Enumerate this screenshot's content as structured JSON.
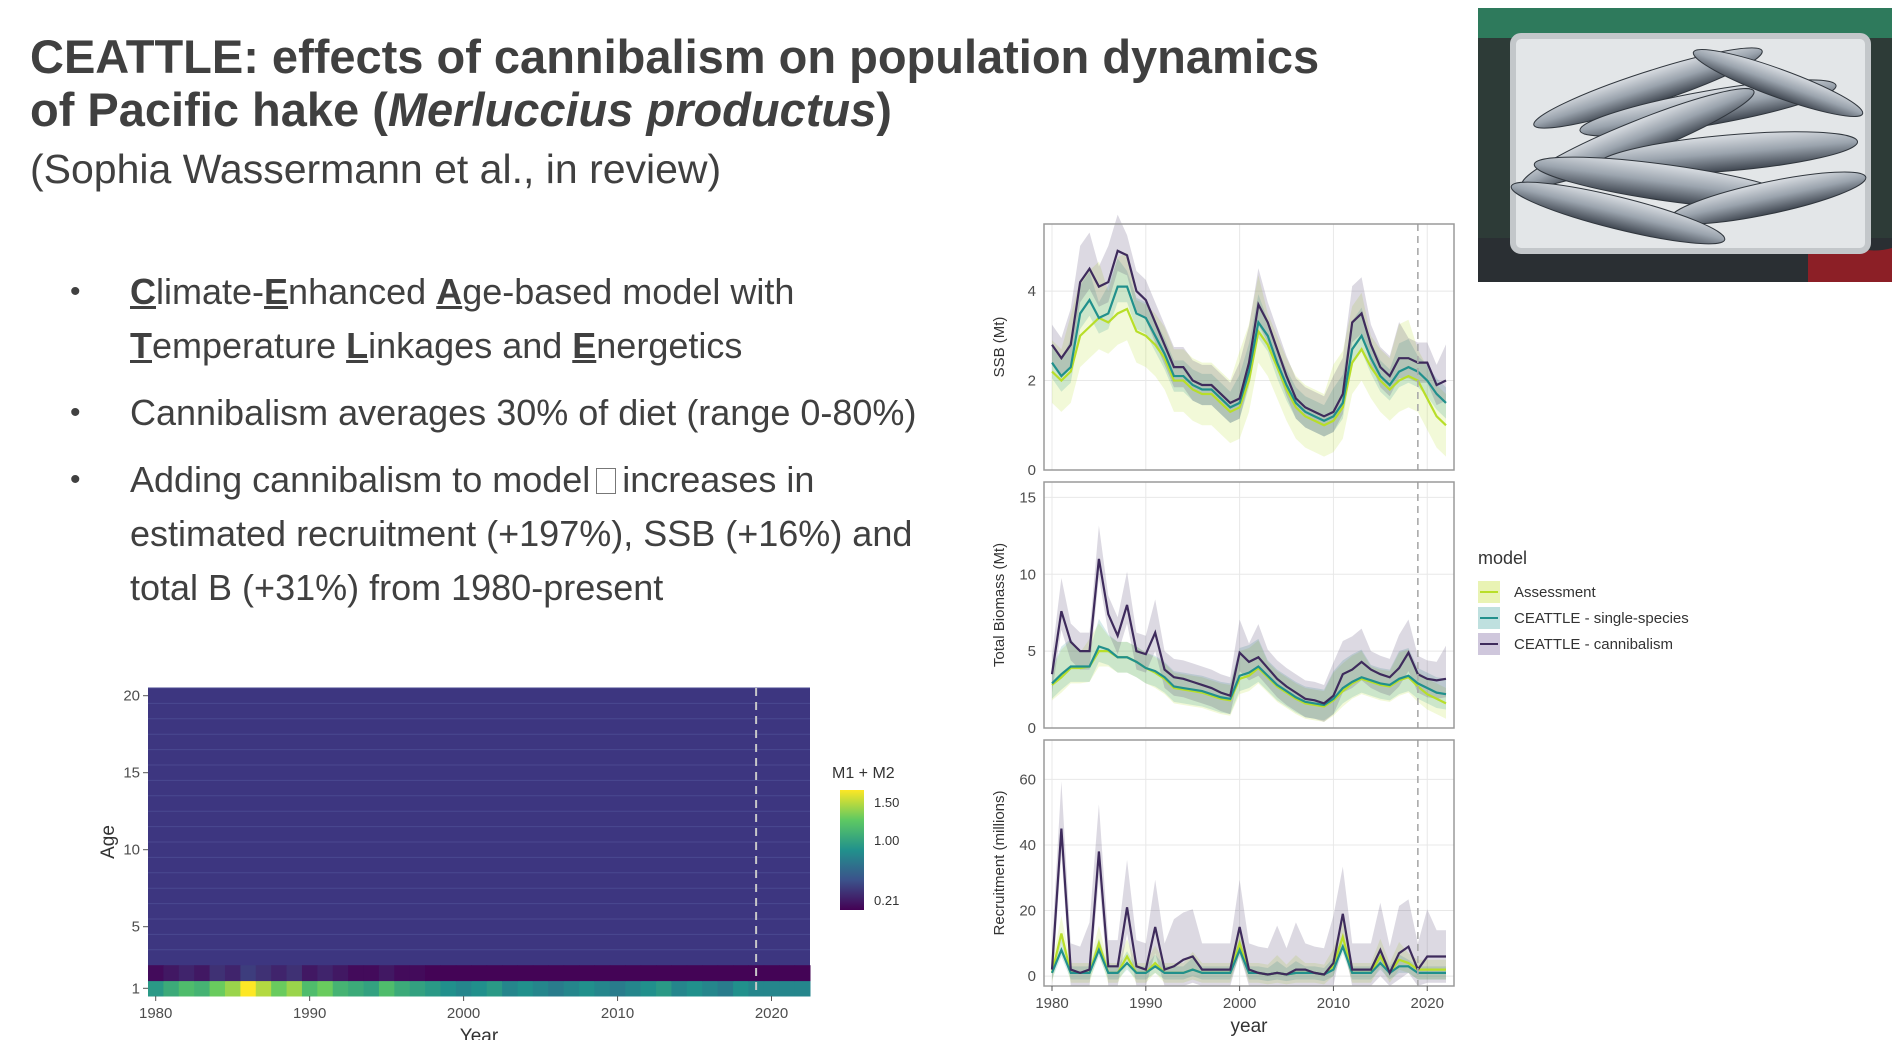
{
  "slide": {
    "title_line1": "CEATTLE: effects of cannibalism on population dynamics",
    "title_line2_pre": "of Pacific hake (",
    "title_line2_italic": "Merluccius productus",
    "title_line2_post": ")",
    "subtitle": "(Sophia Wassermann et al., in review)"
  },
  "bullets": {
    "b1": {
      "l1_u1": "C",
      "l1_t1": "limate-",
      "l1_u2": "E",
      "l1_t2": "nhanced ",
      "l1_u3": "A",
      "l1_t3": "ge-based model with",
      "l2_u1": "T",
      "l2_t1": "emperature ",
      "l2_u2": "L",
      "l2_t2": "inkages and ",
      "l2_u3": "E",
      "l2_t3": "nergetics"
    },
    "b2": "Cannibalism averages 30% of diet (range 0-80%)",
    "b3_pre": "Adding cannibalism to model",
    "b3_post": "increases in",
    "b3_l2": "estimated recruitment (+197%), SSB (+16%) and",
    "b3_l3": "total B (+31%) from 1980-present",
    "bullet_char": "•"
  },
  "photo": {
    "icon": "fish-in-crate-photo"
  },
  "chart_data": [
    {
      "type": "heatmap",
      "xlabel": "Year",
      "ylabel": "Age",
      "x_ticks": [
        "1980",
        "1990",
        "2000",
        "2010",
        "2020"
      ],
      "y_ticks": [
        "1",
        "5",
        "10",
        "15",
        "20"
      ],
      "xlim": [
        1980,
        2022
      ],
      "ylim": [
        1,
        20
      ],
      "vline_x": 2019,
      "legend_title": "M1 + M2",
      "legend_ticks": [
        "1.50",
        "1.00",
        "0.21"
      ],
      "age1_values": [
        0.9,
        1.0,
        1.1,
        1.05,
        1.2,
        1.3,
        1.5,
        1.35,
        1.2,
        1.3,
        1.1,
        1.2,
        1.05,
        1.0,
        0.95,
        1.1,
        1.0,
        0.95,
        0.9,
        0.85,
        0.8,
        0.85,
        0.9,
        0.8,
        0.85,
        0.8,
        0.75,
        0.8,
        0.85,
        0.8,
        0.75,
        0.8,
        0.85,
        0.9,
        0.8,
        0.85,
        0.8,
        0.75,
        0.85,
        0.8,
        0.8,
        0.8,
        0.8
      ],
      "age2_values": [
        0.25,
        0.3,
        0.35,
        0.3,
        0.4,
        0.35,
        0.45,
        0.4,
        0.35,
        0.4,
        0.3,
        0.35,
        0.3,
        0.25,
        0.25,
        0.3,
        0.25,
        0.25,
        0.22,
        0.22,
        0.22,
        0.22,
        0.22,
        0.22,
        0.22,
        0.22,
        0.22,
        0.22,
        0.22,
        0.22,
        0.22,
        0.22,
        0.22,
        0.22,
        0.22,
        0.22,
        0.22,
        0.22,
        0.22,
        0.22,
        0.22,
        0.22,
        0.22
      ],
      "colors": {
        "low": "#3b2a6b",
        "background": "#3d3680",
        "mid": "#218f8d",
        "high": "#d8e219"
      }
    },
    {
      "type": "line",
      "ylabel": "SSB (Mt)",
      "ylim": [
        0,
        5.5
      ],
      "y_ticks": [
        "0",
        "2",
        "4"
      ],
      "xlim": [
        1980,
        2022
      ],
      "vline_x": 2019,
      "x": [
        1980,
        1981,
        1982,
        1983,
        1984,
        1985,
        1986,
        1987,
        1988,
        1989,
        1990,
        1991,
        1992,
        1993,
        1994,
        1995,
        1996,
        1997,
        1998,
        1999,
        2000,
        2001,
        2002,
        2003,
        2004,
        2005,
        2006,
        2007,
        2008,
        2009,
        2010,
        2011,
        2012,
        2013,
        2014,
        2015,
        2016,
        2017,
        2018,
        2019,
        2020,
        2021,
        2022
      ],
      "series": [
        {
          "name": "Assessment",
          "color": "#b8de29",
          "values": [
            2.2,
            2.0,
            2.2,
            3.0,
            3.2,
            3.4,
            3.3,
            3.5,
            3.6,
            3.1,
            3.0,
            2.8,
            2.5,
            2.0,
            2.0,
            1.8,
            1.7,
            1.7,
            1.5,
            1.3,
            1.4,
            2.0,
            3.1,
            2.8,
            2.3,
            1.8,
            1.4,
            1.2,
            1.1,
            1.0,
            1.1,
            1.4,
            2.4,
            2.7,
            2.3,
            2.0,
            1.8,
            2.0,
            2.1,
            2.0,
            1.6,
            1.2,
            1.0
          ],
          "band": 0.7
        },
        {
          "name": "CEATTLE - single-species",
          "color": "#21908c",
          "values": [
            2.4,
            2.1,
            2.3,
            3.5,
            3.8,
            3.4,
            3.5,
            4.1,
            4.1,
            3.5,
            3.4,
            3.0,
            2.6,
            2.1,
            2.1,
            1.9,
            1.8,
            1.8,
            1.6,
            1.4,
            1.5,
            2.2,
            3.3,
            3.0,
            2.4,
            1.9,
            1.5,
            1.3,
            1.2,
            1.1,
            1.2,
            1.5,
            2.7,
            3.0,
            2.5,
            2.1,
            1.9,
            2.2,
            2.3,
            2.2,
            2.0,
            1.7,
            1.5
          ],
          "band": 0.35
        },
        {
          "name": "CEATTLE - cannibalism",
          "color": "#3e2b5c",
          "values": [
            2.8,
            2.5,
            2.8,
            4.2,
            4.5,
            4.1,
            4.2,
            4.9,
            4.8,
            4.0,
            3.8,
            3.3,
            2.8,
            2.3,
            2.3,
            2.0,
            1.9,
            1.9,
            1.7,
            1.5,
            1.6,
            2.4,
            3.7,
            3.3,
            2.7,
            2.1,
            1.6,
            1.4,
            1.3,
            1.2,
            1.3,
            1.7,
            3.3,
            3.5,
            2.8,
            2.3,
            2.1,
            2.5,
            2.5,
            2.4,
            2.4,
            1.9,
            2.0
          ],
          "band": 0.45
        }
      ]
    },
    {
      "type": "line",
      "ylabel": "Total Biomass (Mt)",
      "ylim": [
        0,
        16
      ],
      "y_ticks": [
        "0",
        "5",
        "10",
        "15"
      ],
      "xlim": [
        1980,
        2022
      ],
      "vline_x": 2019,
      "x": [
        1980,
        1981,
        1982,
        1983,
        1984,
        1985,
        1986,
        1987,
        1988,
        1989,
        1990,
        1991,
        1992,
        1993,
        1994,
        1995,
        1996,
        1997,
        1998,
        1999,
        2000,
        2001,
        2002,
        2003,
        2004,
        2005,
        2006,
        2007,
        2008,
        2009,
        2010,
        2011,
        2012,
        2013,
        2014,
        2015,
        2016,
        2017,
        2018,
        2019,
        2020,
        2021,
        2022
      ],
      "series": [
        {
          "name": "Assessment",
          "color": "#b8de29",
          "values": [
            2.8,
            3.3,
            3.9,
            3.9,
            4.0,
            5.0,
            5.0,
            4.6,
            4.6,
            4.3,
            3.9,
            3.6,
            3.2,
            2.6,
            2.5,
            2.4,
            2.3,
            2.1,
            1.9,
            1.8,
            3.2,
            3.4,
            3.9,
            3.3,
            2.7,
            2.3,
            1.9,
            1.6,
            1.5,
            1.4,
            1.8,
            2.4,
            2.9,
            3.2,
            3.0,
            2.8,
            2.7,
            3.1,
            3.3,
            2.7,
            2.2,
            1.9,
            1.6
          ],
          "band": 1.0
        },
        {
          "name": "CEATTLE - single-species",
          "color": "#21908c",
          "values": [
            2.9,
            3.5,
            4.0,
            4.0,
            4.0,
            5.3,
            5.1,
            4.6,
            4.6,
            4.3,
            3.9,
            3.7,
            3.3,
            2.7,
            2.6,
            2.5,
            2.4,
            2.2,
            2.0,
            1.9,
            3.4,
            3.6,
            4.0,
            3.4,
            2.8,
            2.4,
            2.0,
            1.7,
            1.6,
            1.5,
            1.9,
            2.6,
            3.0,
            3.3,
            3.1,
            2.9,
            2.8,
            3.2,
            3.4,
            2.9,
            2.6,
            2.3,
            2.2
          ],
          "band": 1.0
        },
        {
          "name": "CEATTLE - cannibalism",
          "color": "#3e2b5c",
          "values": [
            3.5,
            7.6,
            5.6,
            5.0,
            5.0,
            11.0,
            7.4,
            6.0,
            8.0,
            5.0,
            4.8,
            6.2,
            3.8,
            3.3,
            3.2,
            3.0,
            2.8,
            2.6,
            2.3,
            2.1,
            4.9,
            4.3,
            4.6,
            3.9,
            3.2,
            2.7,
            2.3,
            1.9,
            1.8,
            1.6,
            2.1,
            3.5,
            3.8,
            4.3,
            3.8,
            3.5,
            3.3,
            3.9,
            4.9,
            3.5,
            3.2,
            3.1,
            3.2
          ],
          "band": 1.2
        }
      ]
    },
    {
      "type": "line",
      "ylabel": "Recruitment (millions)",
      "xlabel": "year",
      "ylim": [
        -3,
        72
      ],
      "y_ticks": [
        "0",
        "20",
        "40",
        "60"
      ],
      "x_ticks": [
        "1980",
        "1990",
        "2000",
        "2010",
        "2020"
      ],
      "xlim": [
        1980,
        2022
      ],
      "vline_x": 2019,
      "x": [
        1980,
        1981,
        1982,
        1983,
        1984,
        1985,
        1986,
        1987,
        1988,
        1989,
        1990,
        1991,
        1992,
        1993,
        1994,
        1995,
        1996,
        1997,
        1998,
        1999,
        2000,
        2001,
        2002,
        2003,
        2004,
        2005,
        2006,
        2007,
        2008,
        2009,
        2010,
        2011,
        2012,
        2013,
        2014,
        2015,
        2016,
        2017,
        2018,
        2019,
        2020,
        2021,
        2022
      ],
      "series": [
        {
          "name": "Assessment",
          "color": "#b8de29",
          "values": [
            1,
            13,
            1,
            1,
            1,
            10,
            1,
            1,
            6,
            1,
            1,
            4,
            1,
            1,
            1,
            2,
            1,
            1,
            1,
            1,
            10,
            1,
            1,
            0.5,
            1,
            0.5,
            1,
            1,
            1,
            0.5,
            3,
            12,
            1,
            1,
            1,
            6,
            1,
            5,
            4,
            2,
            2,
            2,
            2
          ],
          "band": 3
        },
        {
          "name": "CEATTLE - single-species",
          "color": "#21908c",
          "values": [
            1,
            8,
            1,
            1,
            1,
            8,
            1,
            1,
            4,
            1,
            1,
            3,
            1,
            1,
            1,
            2,
            1,
            1,
            1,
            1,
            8,
            1,
            1,
            0.5,
            1,
            0.5,
            1,
            1,
            1,
            0.5,
            2,
            9,
            1,
            1,
            1,
            4,
            1,
            3,
            3,
            1,
            1,
            1,
            1
          ],
          "band": 2
        },
        {
          "name": "CEATTLE - cannibalism",
          "color": "#3e2b5c",
          "values": [
            2,
            45,
            2,
            1,
            2,
            38,
            3,
            3,
            21,
            3,
            2,
            15,
            2,
            3,
            5,
            6,
            2,
            2,
            2,
            2,
            15,
            2,
            1,
            0.5,
            1,
            0.5,
            2,
            2,
            1,
            0.5,
            4,
            19,
            2,
            2,
            2,
            8,
            1,
            7,
            9,
            2,
            6,
            6,
            6
          ],
          "band": 8
        }
      ]
    }
  ],
  "legend": {
    "title": "model",
    "items": [
      {
        "label": "Assessment",
        "color": "#b8de29",
        "fill": "#e9f3b4"
      },
      {
        "label": "CEATTLE - single-species",
        "color": "#21908c",
        "fill": "#bfe0df"
      },
      {
        "label": "CEATTLE - cannibalism",
        "color": "#3e2b5c",
        "fill": "#cfc7dc"
      }
    ]
  },
  "colors": {
    "panel_border": "#9a9a9a",
    "grid": "#e8e8e8",
    "axis_text": "#4d4d4d",
    "vline": "#aaaaaa"
  }
}
